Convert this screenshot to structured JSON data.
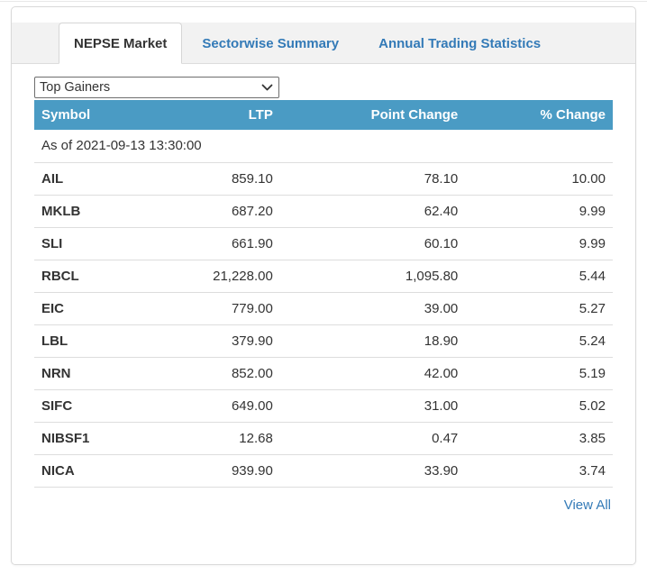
{
  "tabs": [
    {
      "label": "NEPSE Market",
      "active": true
    },
    {
      "label": "Sectorwise Summary",
      "active": false
    },
    {
      "label": "Annual Trading Statistics",
      "active": false
    }
  ],
  "filter": {
    "selected": "Top Gainers"
  },
  "table": {
    "columns": [
      "Symbol",
      "LTP",
      "Point Change",
      "% Change"
    ],
    "as_of": "As of 2021-09-13 13:30:00",
    "rows": [
      {
        "symbol": "AIL",
        "ltp": "859.10",
        "point_change": "78.10",
        "percent_change": "10.00"
      },
      {
        "symbol": "MKLB",
        "ltp": "687.20",
        "point_change": "62.40",
        "percent_change": "9.99"
      },
      {
        "symbol": "SLI",
        "ltp": "661.90",
        "point_change": "60.10",
        "percent_change": "9.99"
      },
      {
        "symbol": "RBCL",
        "ltp": "21,228.00",
        "point_change": "1,095.80",
        "percent_change": "5.44"
      },
      {
        "symbol": "EIC",
        "ltp": "779.00",
        "point_change": "39.00",
        "percent_change": "5.27"
      },
      {
        "symbol": "LBL",
        "ltp": "379.90",
        "point_change": "18.90",
        "percent_change": "5.24"
      },
      {
        "symbol": "NRN",
        "ltp": "852.00",
        "point_change": "42.00",
        "percent_change": "5.19"
      },
      {
        "symbol": "SIFC",
        "ltp": "649.00",
        "point_change": "31.00",
        "percent_change": "5.02"
      },
      {
        "symbol": "NIBSF1",
        "ltp": "12.68",
        "point_change": "0.47",
        "percent_change": "3.85"
      },
      {
        "symbol": "NICA",
        "ltp": "939.90",
        "point_change": "33.90",
        "percent_change": "3.74"
      }
    ],
    "view_all_label": "View All"
  },
  "icons": {
    "dropdown": "chevron-down-icon"
  },
  "colors": {
    "header_bg": "#4a9bc4",
    "tab_link": "#337ab7",
    "view_all_link": "#337ab7",
    "row_border": "#dddddd"
  }
}
